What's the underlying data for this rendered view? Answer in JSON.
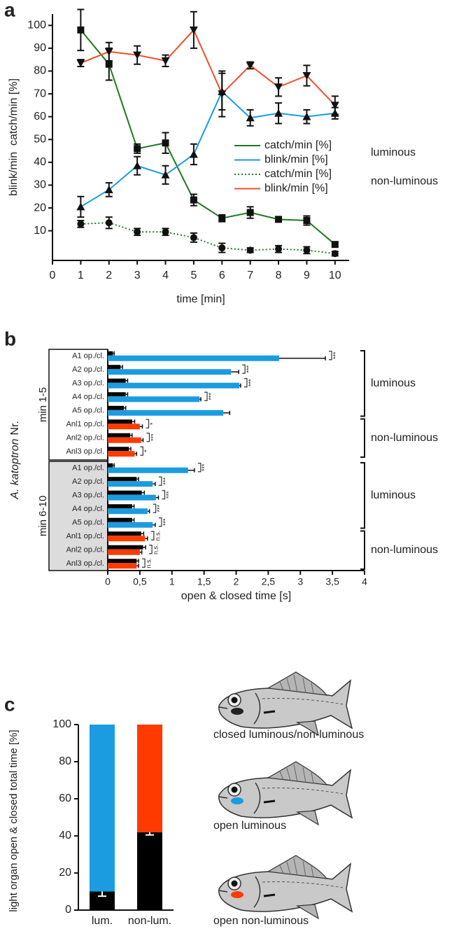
{
  "panel_labels": [
    "a",
    "b",
    "c"
  ],
  "chart_data": [
    {
      "type": "line",
      "xlabel": "time [min]",
      "ylabel": "blink/min  catch/min [%]",
      "x": [
        1,
        2,
        3,
        4,
        5,
        6,
        7,
        8,
        9,
        10
      ],
      "xlim": [
        0,
        10.5
      ],
      "ylim": [
        -3,
        105
      ],
      "xticks": [
        0,
        1,
        2,
        3,
        4,
        5,
        6,
        7,
        8,
        9,
        10
      ],
      "yticks": [
        10,
        20,
        30,
        40,
        50,
        60,
        70,
        80,
        90,
        100
      ],
      "legend_groups": [
        "luminous",
        "non-luminous"
      ],
      "series": [
        {
          "name": "catch/min [%]",
          "group": 0,
          "color": "#1f7a1f",
          "marker": "square",
          "linestyle": "solid",
          "values": [
            98,
            83,
            46,
            48.5,
            23.5,
            15.5,
            18,
            15,
            14.5,
            4
          ],
          "errors": [
            9,
            7,
            2,
            4.5,
            2.5,
            1.5,
            2.5,
            1,
            2,
            1
          ]
        },
        {
          "name": "blink/min [%]",
          "group": 0,
          "color": "#1b9be0",
          "marker": "triangle-up",
          "linestyle": "solid",
          "values": [
            20.5,
            28,
            38.5,
            34.5,
            43.5,
            71,
            59.5,
            61.5,
            60,
            61.5
          ],
          "errors": [
            4.5,
            3,
            4,
            4,
            4.5,
            8,
            3.5,
            4.5,
            3,
            2.5
          ]
        },
        {
          "name": "catch/min [%]",
          "group": 1,
          "color": "#1f7a1f",
          "marker": "circle",
          "linestyle": "dotted",
          "values": [
            13,
            13.5,
            9.5,
            9.5,
            7,
            2.5,
            1.5,
            2,
            1.5,
            0
          ],
          "errors": [
            1.5,
            2.5,
            1.5,
            1.5,
            2,
            2,
            1,
            1.5,
            1.5,
            1
          ]
        },
        {
          "name": "blink/min [%]",
          "group": 1,
          "color": "#ef4f2a",
          "marker": "triangle-down",
          "linestyle": "solid",
          "values": [
            83.5,
            88.5,
            87,
            84.5,
            98,
            70,
            82.5,
            73,
            78,
            65
          ],
          "errors": [
            1.5,
            4,
            4,
            2.5,
            8,
            10,
            1.5,
            4,
            4.5,
            4
          ]
        }
      ]
    },
    {
      "type": "hbar",
      "xlabel": "open & closed time [s]",
      "ylabel_parts": [
        "A. katoptron",
        "Nr."
      ],
      "categories": [
        "A1 op./cl.",
        "A2 op./cl.",
        "A3 op./cl.",
        "A4 op./cl.",
        "A5 op./cl.",
        "Anl1 op./cl.",
        "Anl2 op./cl.",
        "Anl3 op./cl.",
        "A1 op./cl.",
        "A2 op./cl.",
        "A3 op./cl.",
        "A4 op./cl.",
        "A5 op./cl.",
        "Anl1 op./cl.",
        "Anl2 op./cl.",
        "Anl3 op./cl."
      ],
      "row_groups": [
        {
          "label": "min 1-5",
          "first": 0
        },
        {
          "label": "min 6-10",
          "first": 8
        }
      ],
      "xlim": [
        0,
        4
      ],
      "xticks": [
        0,
        {
          "value": 0.5,
          "label": "0,5"
        },
        1,
        {
          "value": 1.5,
          "label": "1,5"
        },
        2,
        {
          "value": 2.5,
          "label": "2,5"
        },
        3,
        {
          "value": 3.5,
          "label": "3,5"
        },
        4
      ],
      "series": [
        {
          "color": "#000000",
          "values": [
            0.08,
            0.2,
            0.28,
            0.28,
            0.25,
            0.38,
            0.35,
            0.33,
            0.08,
            0.45,
            0.53,
            0.38,
            0.38,
            0.52,
            0.55,
            0.45
          ],
          "errors": [
            0.02,
            0.03,
            0.03,
            0.03,
            0.03,
            0.04,
            0.03,
            0.03,
            0.02,
            0.03,
            0.04,
            0.03,
            0.03,
            0.04,
            0.04,
            0.03
          ]
        },
        {
          "colors": [
            "#1b9be0",
            "#1b9be0",
            "#1b9be0",
            "#1b9be0",
            "#1b9be0",
            "#ff3a00",
            "#ff3a00",
            "#ff3a00",
            "#1b9be0",
            "#1b9be0",
            "#1b9be0",
            "#1b9be0",
            "#1b9be0",
            "#ff3a00",
            "#ff3a00",
            "#ff3a00"
          ],
          "values": [
            2.67,
            1.92,
            2.05,
            1.43,
            1.8,
            0.5,
            0.52,
            0.42,
            1.25,
            0.7,
            0.75,
            0.62,
            0.7,
            0.58,
            0.5,
            0.45
          ],
          "errors": [
            0.72,
            0.12,
            0.02,
            0.02,
            0.1,
            0.04,
            0.03,
            0.03,
            0.1,
            0.04,
            0.04,
            0.03,
            0.04,
            0.04,
            0.03,
            0.03
          ]
        }
      ],
      "significance": [
        "***",
        "***",
        "***",
        "***",
        null,
        "*",
        "***",
        "*",
        "***",
        "***",
        "***",
        "***",
        "***",
        "n.s.",
        "n.s.",
        "n.s."
      ],
      "brackets": [
        {
          "label": "luminous",
          "rows": [
            0,
            4
          ]
        },
        {
          "label": "non-luminous",
          "rows": [
            5,
            7
          ]
        },
        {
          "label": "luminous",
          "rows": [
            8,
            12
          ]
        },
        {
          "label": "non-luminous",
          "rows": [
            13,
            15
          ]
        }
      ]
    },
    {
      "type": "stacked_bar",
      "ylabel": "light organ open & closed total time [%]",
      "categories": [
        "lum.",
        "non-lum."
      ],
      "ylim": [
        0,
        100
      ],
      "yticks": [
        0,
        20,
        40,
        60,
        80,
        100
      ],
      "series": [
        {
          "color": "#000000",
          "values": [
            10,
            42
          ],
          "errors": [
            2.5,
            1.5
          ]
        },
        {
          "colors": [
            "#1b9be0",
            "#ff3a00"
          ],
          "values": [
            90,
            58
          ]
        }
      ]
    }
  ],
  "fish_captions": [
    "closed luminous/non-luminous",
    "open luminous",
    "open non-luminous"
  ]
}
